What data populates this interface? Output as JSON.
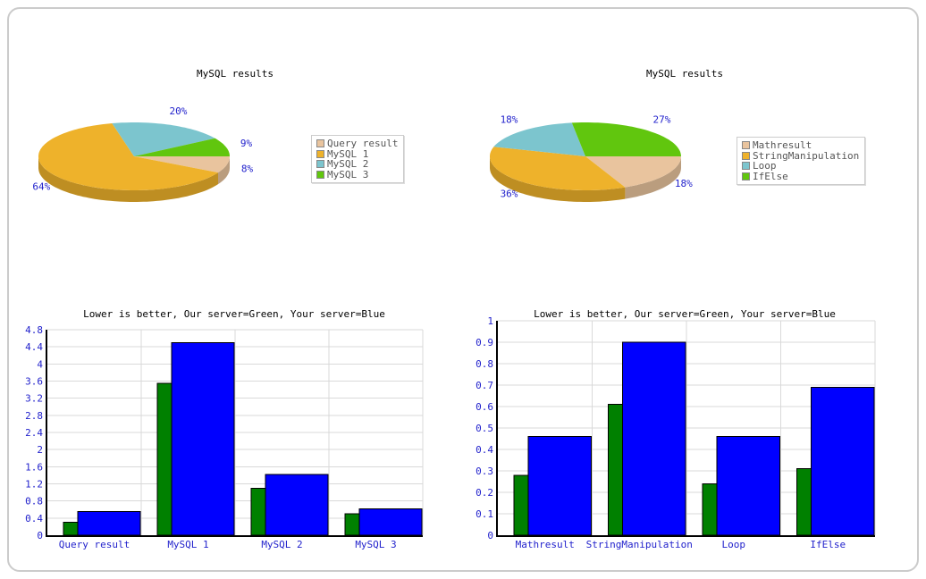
{
  "page": {
    "background": "#ffffff",
    "border_color": "#cbcbcb"
  },
  "colors": {
    "tan": "#E9C49E",
    "orange": "#EEB22B",
    "teal": "#7CC5CE",
    "lime": "#61C60E",
    "bar_green": "#008000",
    "bar_blue": "#0000FF",
    "label_blue": "#2222CC",
    "grid": "#D9D9D9",
    "axis": "#000000",
    "legend_text": "#555555"
  },
  "chart_data": [
    {
      "type": "pie",
      "title": "MySQL results",
      "legend_position": "right",
      "slices": [
        {
          "label": "Query result",
          "percent": 8,
          "percent_label": "8%",
          "color_key": "tan"
        },
        {
          "label": "MySQL 1",
          "percent": 64,
          "percent_label": "64%",
          "color_key": "orange"
        },
        {
          "label": "MySQL 2",
          "percent": 20,
          "percent_label": "20%",
          "color_key": "teal"
        },
        {
          "label": "MySQL 3",
          "percent": 9,
          "percent_label": "9%",
          "color_key": "lime"
        }
      ]
    },
    {
      "type": "pie",
      "title": "MySQL results",
      "legend_position": "right",
      "slices": [
        {
          "label": "Mathresult",
          "percent": 18,
          "percent_label": "18%",
          "color_key": "tan"
        },
        {
          "label": "StringManipulation",
          "percent": 36,
          "percent_label": "36%",
          "color_key": "orange"
        },
        {
          "label": "Loop",
          "percent": 18,
          "percent_label": "18%",
          "color_key": "teal"
        },
        {
          "label": "IfElse",
          "percent": 27,
          "percent_label": "27%",
          "color_key": "lime"
        }
      ]
    },
    {
      "type": "bar",
      "title": "Lower is better, Our server=Green, Your server=Blue",
      "categories": [
        "Query result",
        "MySQL 1",
        "MySQL 2",
        "MySQL 3"
      ],
      "series": [
        {
          "name": "Our server",
          "color_key": "bar_green",
          "values": [
            0.3,
            3.55,
            1.1,
            0.5
          ]
        },
        {
          "name": "Your server",
          "color_key": "bar_blue",
          "values": [
            0.55,
            4.5,
            1.42,
            0.62
          ]
        }
      ],
      "ylim": [
        0,
        4.8
      ],
      "yticks": [
        "0",
        "0.4",
        "0.8",
        "1.2",
        "1.6",
        "2",
        "2.4",
        "2.8",
        "3.2",
        "3.6",
        "4",
        "4.4",
        "4.8"
      ],
      "grid": true
    },
    {
      "type": "bar",
      "title": "Lower is better, Our server=Green, Your server=Blue",
      "categories": [
        "Mathresult",
        "StringManipulation",
        "Loop",
        "IfElse"
      ],
      "series": [
        {
          "name": "Our server",
          "color_key": "bar_green",
          "values": [
            0.28,
            0.61,
            0.24,
            0.31
          ]
        },
        {
          "name": "Your server",
          "color_key": "bar_blue",
          "values": [
            0.46,
            0.9,
            0.46,
            0.69
          ]
        }
      ],
      "ylim": [
        0,
        1
      ],
      "yticks": [
        "0",
        "0.1",
        "0.2",
        "0.3",
        "0.4",
        "0.5",
        "0.6",
        "0.7",
        "0.8",
        "0.9",
        "1"
      ],
      "grid": true
    }
  ]
}
